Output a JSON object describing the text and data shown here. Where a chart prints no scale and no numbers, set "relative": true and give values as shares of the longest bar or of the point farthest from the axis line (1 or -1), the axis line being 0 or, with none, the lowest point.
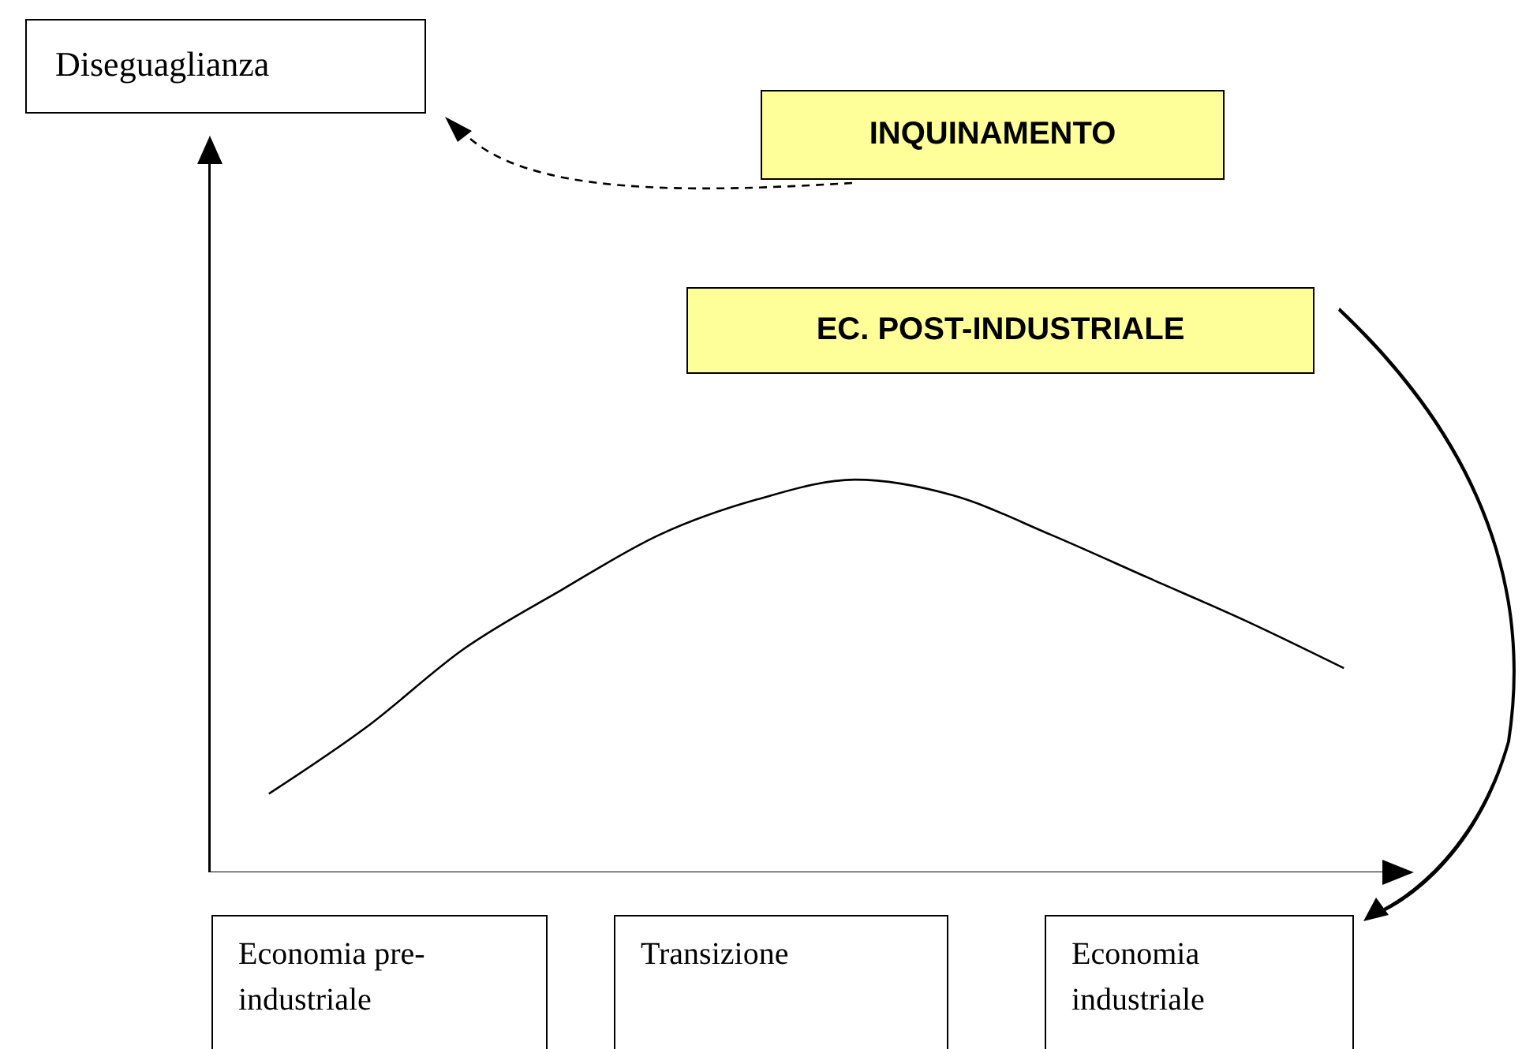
{
  "chart_data": {
    "type": "line",
    "relative": true,
    "categories": [
      null,
      null,
      null,
      null,
      null,
      null,
      null,
      null,
      null,
      null,
      null,
      null
    ],
    "series": [
      {
        "color": "#000000",
        "values": [
          0.2,
          0.37,
          0.57,
          0.72,
          0.86,
          0.95,
          1.0,
          0.96,
          0.86,
          0.75,
          0.64,
          0.52
        ]
      }
    ],
    "annotations": [
      "Diseguaglianza",
      "INQUINAMENTO",
      "EC. POST-INDUSTRIALE",
      "Economia pre-industriale",
      "Transizione",
      "Economia industriale"
    ]
  }
}
